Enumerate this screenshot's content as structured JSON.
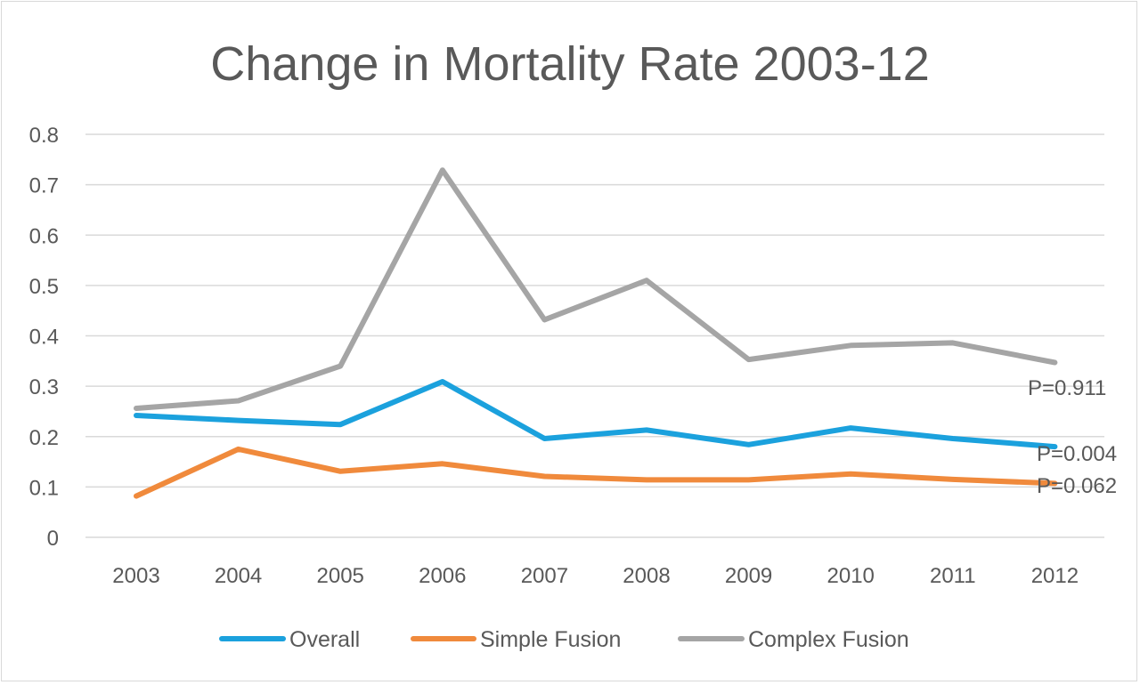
{
  "chart_data": {
    "type": "line",
    "title": "Change in Mortality Rate 2003-12",
    "xlabel": "",
    "ylabel": "",
    "categories": [
      "2003",
      "2004",
      "2005",
      "2006",
      "2007",
      "2008",
      "2009",
      "2010",
      "2011",
      "2012"
    ],
    "y_ticks": [
      "0",
      "0.1",
      "0.2",
      "0.3",
      "0.4",
      "0.5",
      "0.6",
      "0.7",
      "0.8"
    ],
    "ylim": [
      0,
      0.8
    ],
    "grid": true,
    "legend_position": "bottom",
    "series": [
      {
        "name": "Overall",
        "color": "#1ba1dd",
        "values": [
          0.242,
          0.232,
          0.224,
          0.309,
          0.196,
          0.213,
          0.184,
          0.217,
          0.196,
          0.18
        ],
        "annotation": "P=0.004"
      },
      {
        "name": "Simple Fusion",
        "color": "#f08a3c",
        "values": [
          0.082,
          0.175,
          0.131,
          0.146,
          0.121,
          0.114,
          0.114,
          0.126,
          0.115,
          0.107
        ],
        "annotation": "P=0.062"
      },
      {
        "name": "Complex Fusion",
        "color": "#a5a5a5",
        "values": [
          0.256,
          0.271,
          0.34,
          0.729,
          0.432,
          0.51,
          0.353,
          0.381,
          0.386,
          0.347
        ],
        "annotation": "P=0.911"
      }
    ]
  }
}
